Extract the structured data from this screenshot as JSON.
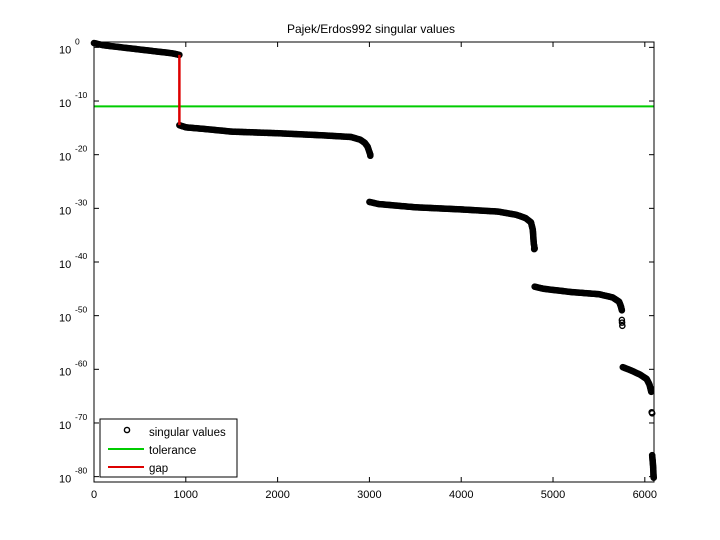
{
  "chart_data": {
    "type": "scatter",
    "title": "Pajek/Erdos992 singular values",
    "xlabel": "",
    "ylabel": "",
    "xlim": [
      0,
      6100
    ],
    "ylim_exponent": [
      -81,
      1
    ],
    "yscale": "log",
    "grid": false,
    "legend_position": "bottom-left",
    "x_ticks": [
      {
        "value": 0,
        "label": "0"
      },
      {
        "value": 1000,
        "label": "1000"
      },
      {
        "value": 2000,
        "label": "2000"
      },
      {
        "value": 3000,
        "label": "3000"
      },
      {
        "value": 4000,
        "label": "4000"
      },
      {
        "value": 5000,
        "label": "5000"
      },
      {
        "value": 6000,
        "label": "6000"
      }
    ],
    "y_ticks": [
      {
        "exponent": 0,
        "base": "10",
        "sup": "0"
      },
      {
        "exponent": -10,
        "base": "10",
        "sup": "-10"
      },
      {
        "exponent": -20,
        "base": "10",
        "sup": "-20"
      },
      {
        "exponent": -30,
        "base": "10",
        "sup": "-30"
      },
      {
        "exponent": -40,
        "base": "10",
        "sup": "-40"
      },
      {
        "exponent": -50,
        "base": "10",
        "sup": "-50"
      },
      {
        "exponent": -60,
        "base": "10",
        "sup": "-60"
      },
      {
        "exponent": -70,
        "base": "10",
        "sup": "-70"
      },
      {
        "exponent": -80,
        "base": "10",
        "sup": "-80"
      }
    ],
    "series": [
      {
        "name": "singular values",
        "kind": "markers",
        "color": "#000000",
        "log10_segments": [
          [
            [
              0,
              0.8
            ],
            [
              100,
              0.4
            ],
            [
              300,
              0.0
            ],
            [
              500,
              -0.4
            ],
            [
              700,
              -0.8
            ],
            [
              850,
              -1.1
            ],
            [
              930,
              -1.4
            ]
          ],
          [
            [
              930,
              -14.5
            ],
            [
              1000,
              -14.9
            ],
            [
              1200,
              -15.2
            ],
            [
              1500,
              -15.7
            ],
            [
              2000,
              -16.0
            ],
            [
              2500,
              -16.4
            ],
            [
              2800,
              -16.7
            ],
            [
              2900,
              -17.2
            ],
            [
              2950,
              -17.8
            ],
            [
              2980,
              -18.5
            ],
            [
              3000,
              -19.5
            ],
            [
              3010,
              -20.0
            ]
          ],
          [
            [
              3000,
              -28.8
            ],
            [
              3100,
              -29.2
            ],
            [
              3500,
              -29.8
            ],
            [
              4000,
              -30.2
            ],
            [
              4400,
              -30.6
            ],
            [
              4600,
              -31.2
            ],
            [
              4700,
              -31.8
            ],
            [
              4760,
              -32.6
            ],
            [
              4780,
              -34.0
            ],
            [
              4790,
              -36.5
            ],
            [
              4800,
              -37.5
            ]
          ],
          [
            [
              4800,
              -44.6
            ],
            [
              4900,
              -45.0
            ],
            [
              5200,
              -45.6
            ],
            [
              5500,
              -46.0
            ],
            [
              5650,
              -46.6
            ],
            [
              5720,
              -47.4
            ],
            [
              5740,
              -48.3
            ],
            [
              5750,
              -49.0
            ]
          ],
          [
            [
              5760,
              -59.6
            ],
            [
              5850,
              -60.2
            ],
            [
              5950,
              -61.0
            ],
            [
              6020,
              -61.8
            ],
            [
              6050,
              -62.8
            ],
            [
              6065,
              -63.8
            ],
            [
              6070,
              -64.2
            ]
          ],
          [
            [
              6080,
              -76.0
            ],
            [
              6085,
              -77.0
            ],
            [
              6090,
              -78.0
            ],
            [
              6093,
              -79.0
            ],
            [
              6095,
              -80.0
            ]
          ]
        ],
        "log10_outliers": [
          [
            3010,
            -20.2
          ],
          [
            4795,
            -37.6
          ],
          [
            5750,
            -50.8
          ],
          [
            5752,
            -51.3
          ],
          [
            5755,
            -51.9
          ],
          [
            6075,
            -68.0
          ],
          [
            6080,
            -68.2
          ],
          [
            6097,
            -80.2
          ]
        ]
      },
      {
        "name": "tolerance",
        "kind": "hline",
        "color": "#00cc00",
        "log10_value": -11.0
      },
      {
        "name": "gap",
        "kind": "vline",
        "color": "#dd0000",
        "x": 930,
        "log10_from": -1.4,
        "log10_to": -14.5
      }
    ]
  }
}
